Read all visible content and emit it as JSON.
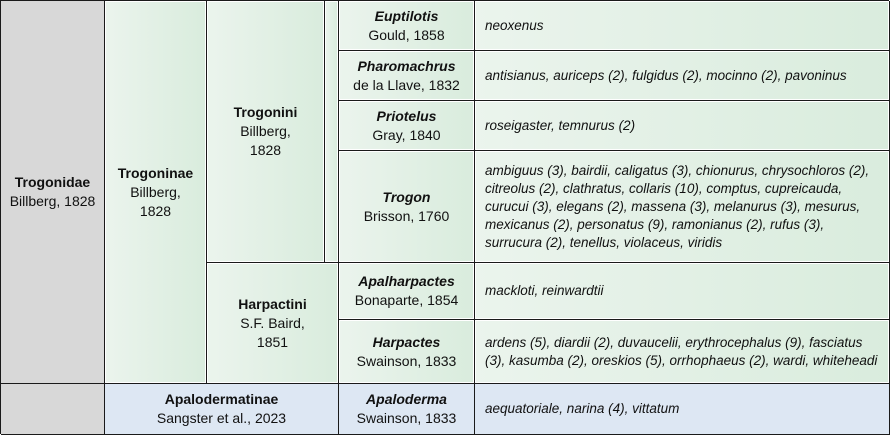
{
  "family": {
    "name": "Trogonidae",
    "authority": "Billberg, 1828"
  },
  "subfamilies": [
    {
      "name": "Trogoninae",
      "authority": "Billberg, 1828"
    },
    {
      "name": "Apalodermatinae",
      "authority": "Sangster et al., 2023"
    }
  ],
  "tribes": [
    {
      "name": "Trogonini",
      "authority": "Billberg, 1828"
    },
    {
      "name": "Harpactini",
      "authority": "S.F. Baird, 1851"
    }
  ],
  "genera": [
    {
      "name": "Euptilotis",
      "authority": "Gould, 1858",
      "species": "neoxenus"
    },
    {
      "name": "Pharomachrus",
      "authority": "de la Llave, 1832",
      "species": "antisianus, auriceps (2), fulgidus (2), mocinno (2), pavoninus"
    },
    {
      "name": "Priotelus",
      "authority": "Gray, 1840",
      "species": "roseigaster, temnurus (2)"
    },
    {
      "name": "Trogon",
      "authority": "Brisson, 1760",
      "species": "ambiguus (3), bairdii, caligatus (3), chionurus, chrysochloros (2), citreolus (2), clathratus, collaris (10), comptus, cupreicauda, curucui (3), elegans (2), massena (3), melanurus (3), mesurus, mexicanus (2), personatus (9), ramonianus (2), rufus (3), surrucura (2), tenellus, violaceus, viridis"
    },
    {
      "name": "Apalharpactes",
      "authority": "Bonaparte, 1854",
      "species": "mackloti, reinwardtii"
    },
    {
      "name": "Harpactes",
      "authority": "Swainson, 1833",
      "species": "ardens (5), diardii (2), duvaucelii, erythrocephalus (9), fasciatus (3), kasumba (2), oreskios (5), orrhophaeus (2), wardi, whiteheadi"
    },
    {
      "name": "Apaloderma",
      "authority": "Swainson, 1833",
      "species": "aequatoriale, narina (4), vittatum"
    }
  ]
}
